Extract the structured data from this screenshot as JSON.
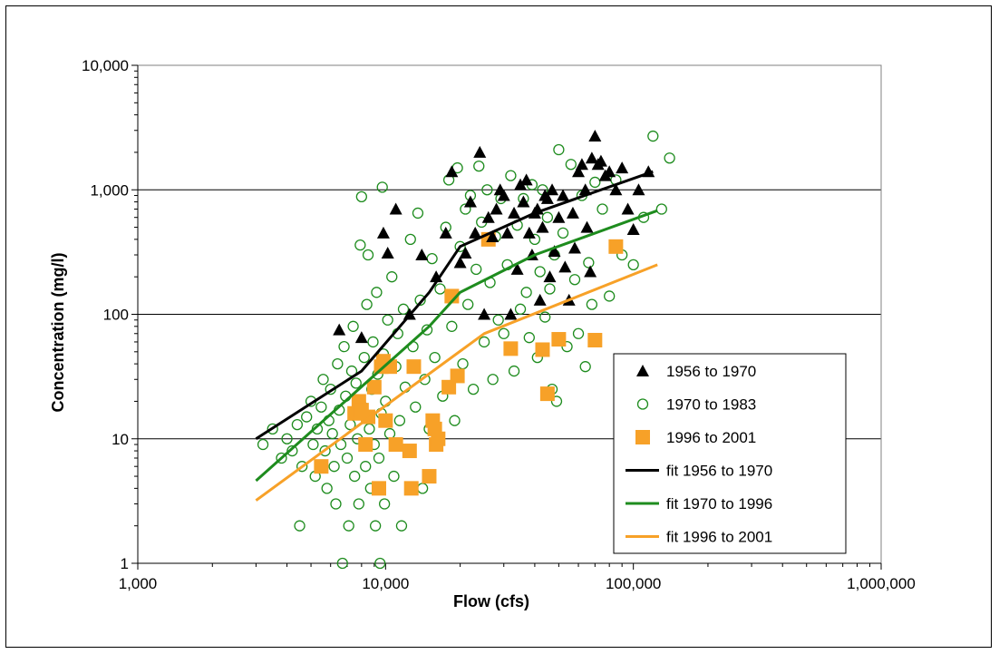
{
  "chart_data": {
    "type": "scatter",
    "xlabel": "Flow (cfs)",
    "ylabel": "Concentration  (mg/l)",
    "xscale": "log",
    "yscale": "log",
    "xlim": [
      1000,
      1000000
    ],
    "ylim": [
      1,
      10000
    ],
    "x_ticks": [
      "1,000",
      "10,000",
      "100,000",
      "1,000,000"
    ],
    "y_ticks": [
      "1",
      "10",
      "100",
      "1,000",
      "10,000"
    ],
    "grid": "horizontal major",
    "legend_position": "bottom-right",
    "series": [
      {
        "name": "1956 to 1970",
        "marker": "triangle",
        "color": "#000000",
        "points": [
          [
            6500,
            75
          ],
          [
            8000,
            65
          ],
          [
            9800,
            450
          ],
          [
            10200,
            310
          ],
          [
            11000,
            700
          ],
          [
            12500,
            100
          ],
          [
            14000,
            300
          ],
          [
            16000,
            200
          ],
          [
            17500,
            450
          ],
          [
            18500,
            1400
          ],
          [
            20000,
            260
          ],
          [
            21000,
            310
          ],
          [
            22000,
            800
          ],
          [
            23000,
            450
          ],
          [
            24000,
            2000
          ],
          [
            25000,
            100
          ],
          [
            26000,
            600
          ],
          [
            27000,
            420
          ],
          [
            28000,
            700
          ],
          [
            29000,
            1000
          ],
          [
            30000,
            900
          ],
          [
            31000,
            450
          ],
          [
            32000,
            100
          ],
          [
            33000,
            650
          ],
          [
            34000,
            230
          ],
          [
            35000,
            1100
          ],
          [
            36000,
            800
          ],
          [
            37000,
            1200
          ],
          [
            38000,
            450
          ],
          [
            39000,
            300
          ],
          [
            40000,
            650
          ],
          [
            41000,
            700
          ],
          [
            42000,
            130
          ],
          [
            43000,
            500
          ],
          [
            44000,
            900
          ],
          [
            45000,
            850
          ],
          [
            46000,
            200
          ],
          [
            47000,
            1000
          ],
          [
            48000,
            320
          ],
          [
            50000,
            600
          ],
          [
            52000,
            900
          ],
          [
            53000,
            240
          ],
          [
            55000,
            130
          ],
          [
            57000,
            650
          ],
          [
            58000,
            340
          ],
          [
            60000,
            1400
          ],
          [
            62000,
            1600
          ],
          [
            64000,
            1000
          ],
          [
            65000,
            500
          ],
          [
            67000,
            220
          ],
          [
            68000,
            1800
          ],
          [
            70000,
            2700
          ],
          [
            72000,
            1600
          ],
          [
            74000,
            1700
          ],
          [
            77000,
            1300
          ],
          [
            80000,
            1400
          ],
          [
            85000,
            1000
          ],
          [
            90000,
            1500
          ],
          [
            95000,
            700
          ],
          [
            100000,
            480
          ],
          [
            105000,
            1000
          ],
          [
            115000,
            1400
          ]
        ]
      },
      {
        "name": "1970 to 1983",
        "marker": "open-circle",
        "color": "#1e8c1e",
        "points": [
          [
            3200,
            9
          ],
          [
            3500,
            12
          ],
          [
            3800,
            7
          ],
          [
            4000,
            10
          ],
          [
            4200,
            8
          ],
          [
            4400,
            13
          ],
          [
            4500,
            2
          ],
          [
            4600,
            6
          ],
          [
            4800,
            15
          ],
          [
            5000,
            20
          ],
          [
            5100,
            9
          ],
          [
            5200,
            5
          ],
          [
            5300,
            12
          ],
          [
            5500,
            18
          ],
          [
            5600,
            30
          ],
          [
            5700,
            8
          ],
          [
            5800,
            4
          ],
          [
            5900,
            14
          ],
          [
            6000,
            25
          ],
          [
            6100,
            11
          ],
          [
            6200,
            6
          ],
          [
            6300,
            3
          ],
          [
            6400,
            40
          ],
          [
            6500,
            17
          ],
          [
            6600,
            9
          ],
          [
            6700,
            1
          ],
          [
            6800,
            55
          ],
          [
            6900,
            22
          ],
          [
            7000,
            7
          ],
          [
            7100,
            2
          ],
          [
            7200,
            13
          ],
          [
            7300,
            35
          ],
          [
            7400,
            80
          ],
          [
            7500,
            5
          ],
          [
            7600,
            28
          ],
          [
            7700,
            10
          ],
          [
            7800,
            3
          ],
          [
            7900,
            360
          ],
          [
            8000,
            880
          ],
          [
            8100,
            18
          ],
          [
            8200,
            45
          ],
          [
            8300,
            6
          ],
          [
            8400,
            120
          ],
          [
            8500,
            300
          ],
          [
            8600,
            12
          ],
          [
            8700,
            4
          ],
          [
            8800,
            25
          ],
          [
            8900,
            60
          ],
          [
            9000,
            9
          ],
          [
            9100,
            2
          ],
          [
            9200,
            150
          ],
          [
            9300,
            33
          ],
          [
            9400,
            7
          ],
          [
            9500,
            1
          ],
          [
            9600,
            16
          ],
          [
            9700,
            1050
          ],
          [
            9800,
            48
          ],
          [
            9900,
            3
          ],
          [
            10000,
            20
          ],
          [
            10200,
            90
          ],
          [
            10400,
            11
          ],
          [
            10600,
            200
          ],
          [
            10800,
            5
          ],
          [
            11000,
            38
          ],
          [
            11200,
            70
          ],
          [
            11400,
            14
          ],
          [
            11600,
            2
          ],
          [
            11800,
            110
          ],
          [
            12000,
            26
          ],
          [
            12300,
            8
          ],
          [
            12600,
            400
          ],
          [
            12900,
            55
          ],
          [
            13200,
            18
          ],
          [
            13500,
            650
          ],
          [
            13800,
            130
          ],
          [
            14100,
            4
          ],
          [
            14400,
            30
          ],
          [
            14700,
            75
          ],
          [
            15000,
            12
          ],
          [
            15400,
            280
          ],
          [
            15800,
            45
          ],
          [
            16200,
            9
          ],
          [
            16600,
            160
          ],
          [
            17000,
            22
          ],
          [
            17500,
            500
          ],
          [
            18000,
            1200
          ],
          [
            18500,
            80
          ],
          [
            19000,
            14
          ],
          [
            19500,
            1500
          ],
          [
            20000,
            350
          ],
          [
            20500,
            40
          ],
          [
            21000,
            700
          ],
          [
            21500,
            120
          ],
          [
            22000,
            900
          ],
          [
            22600,
            25
          ],
          [
            23200,
            230
          ],
          [
            23800,
            1550
          ],
          [
            24400,
            550
          ],
          [
            25000,
            60
          ],
          [
            25700,
            1000
          ],
          [
            26400,
            180
          ],
          [
            27100,
            30
          ],
          [
            27800,
            420
          ],
          [
            28500,
            90
          ],
          [
            29200,
            850
          ],
          [
            30000,
            70
          ],
          [
            31000,
            250
          ],
          [
            32000,
            1300
          ],
          [
            33000,
            35
          ],
          [
            34000,
            520
          ],
          [
            35000,
            110
          ],
          [
            36000,
            850
          ],
          [
            37000,
            150
          ],
          [
            38000,
            65
          ],
          [
            39000,
            1100
          ],
          [
            40000,
            400
          ],
          [
            41000,
            45
          ],
          [
            42000,
            220
          ],
          [
            43000,
            1000
          ],
          [
            44000,
            95
          ],
          [
            45000,
            600
          ],
          [
            46000,
            160
          ],
          [
            47000,
            25
          ],
          [
            48000,
            300
          ],
          [
            49000,
            20
          ],
          [
            50000,
            2100
          ],
          [
            52000,
            450
          ],
          [
            54000,
            55
          ],
          [
            56000,
            1600
          ],
          [
            58000,
            190
          ],
          [
            60000,
            70
          ],
          [
            62000,
            900
          ],
          [
            64000,
            38
          ],
          [
            66000,
            260
          ],
          [
            68000,
            120
          ],
          [
            70000,
            1150
          ],
          [
            75000,
            700
          ],
          [
            80000,
            140
          ],
          [
            85000,
            1200
          ],
          [
            90000,
            300
          ],
          [
            100000,
            250
          ],
          [
            110000,
            600
          ],
          [
            120000,
            2700
          ],
          [
            130000,
            700
          ],
          [
            140000,
            1800
          ]
        ]
      },
      {
        "name": "1996 to 2001",
        "marker": "square",
        "color": "#f7a128",
        "points": [
          [
            5500,
            6
          ],
          [
            7500,
            16
          ],
          [
            7800,
            20
          ],
          [
            8000,
            17
          ],
          [
            8300,
            9
          ],
          [
            8500,
            15
          ],
          [
            9000,
            26
          ],
          [
            9400,
            4
          ],
          [
            9600,
            38
          ],
          [
            9800,
            42
          ],
          [
            10000,
            14
          ],
          [
            10400,
            38
          ],
          [
            11000,
            9
          ],
          [
            12500,
            8
          ],
          [
            12700,
            4
          ],
          [
            13000,
            38
          ],
          [
            15000,
            5
          ],
          [
            15500,
            14
          ],
          [
            15800,
            12
          ],
          [
            16000,
            9
          ],
          [
            16300,
            10
          ],
          [
            18000,
            26
          ],
          [
            18500,
            140
          ],
          [
            19500,
            32
          ],
          [
            26000,
            400
          ],
          [
            32000,
            53
          ],
          [
            43000,
            52
          ],
          [
            45000,
            23
          ],
          [
            50000,
            63
          ],
          [
            70000,
            62
          ],
          [
            85000,
            350
          ]
        ]
      }
    ],
    "fits": [
      {
        "name": "fit 1956 to 1970",
        "color": "#000000",
        "line": [
          [
            3000,
            10
          ],
          [
            8000,
            35
          ],
          [
            15000,
            150
          ],
          [
            20000,
            350
          ],
          [
            40000,
            650
          ],
          [
            120000,
            1400
          ]
        ]
      },
      {
        "name": "fit 1970 to 1996",
        "color": "#1e8c1e",
        "line": [
          [
            3000,
            4.6
          ],
          [
            15000,
            80
          ],
          [
            20000,
            150
          ],
          [
            40000,
            300
          ],
          [
            125000,
            680
          ]
        ]
      },
      {
        "name": "fit 1996 to 2001",
        "color": "#f7a128",
        "line": [
          [
            3000,
            3.2
          ],
          [
            25000,
            70
          ],
          [
            125000,
            250
          ]
        ]
      }
    ],
    "legend": [
      {
        "label": "1956 to 1970",
        "symbol": "triangle",
        "color": "#000000"
      },
      {
        "label": "1970 to 1983",
        "symbol": "open-circle",
        "color": "#1e8c1e"
      },
      {
        "label": "1996 to 2001",
        "symbol": "square",
        "color": "#f7a128"
      },
      {
        "label": "fit 1956 to 1970",
        "symbol": "line",
        "color": "#000000"
      },
      {
        "label": "fit 1970 to 1996",
        "symbol": "line",
        "color": "#1e8c1e"
      },
      {
        "label": "fit 1996 to 2001",
        "symbol": "line",
        "color": "#f7a128"
      }
    ]
  }
}
